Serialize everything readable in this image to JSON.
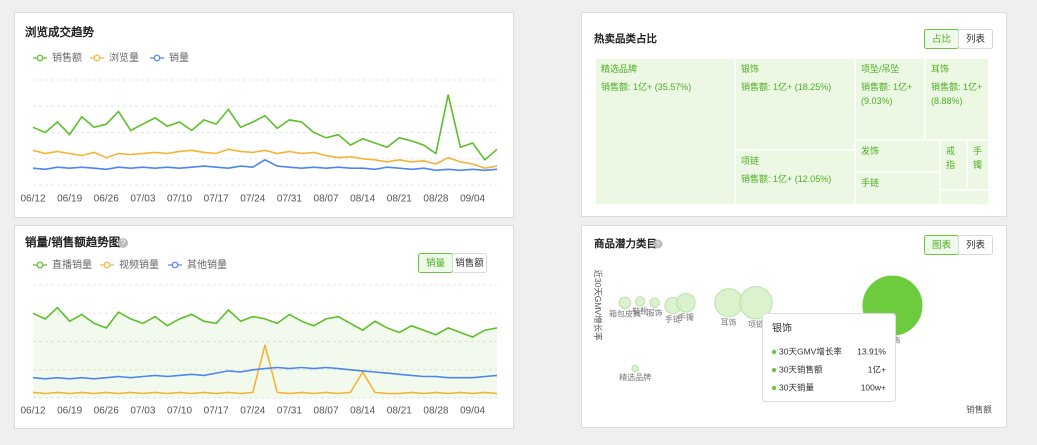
{
  "chart_data": [
    {
      "type": "line",
      "title": "浏览成交趋势",
      "categories": [
        "06/12",
        null,
        null,
        "06/19",
        null,
        null,
        "06/26",
        null,
        null,
        "07/03",
        null,
        null,
        "07/10",
        null,
        null,
        "07/17",
        null,
        null,
        "07/24",
        null,
        null,
        "07/31",
        null,
        null,
        "08/07",
        null,
        null,
        "08/14",
        null,
        null,
        "08/21",
        null,
        null,
        "08/28",
        null,
        null,
        "09/04",
        null,
        null
      ],
      "ylim": [
        0,
        100
      ],
      "series": [
        {
          "name": "销售额",
          "color": "#5cbf2a",
          "values": [
            55,
            50,
            60,
            48,
            65,
            55,
            58,
            70,
            52,
            58,
            64,
            56,
            60,
            52,
            62,
            58,
            72,
            55,
            60,
            66,
            54,
            62,
            60,
            50,
            45,
            48,
            38,
            44,
            40,
            36,
            45,
            42,
            38,
            30,
            86,
            36,
            40,
            24,
            34
          ]
        },
        {
          "name": "浏览量",
          "color": "#f5b335",
          "values": [
            33,
            30,
            32,
            30,
            28,
            31,
            26,
            30,
            29,
            30,
            31,
            30,
            32,
            33,
            31,
            30,
            34,
            32,
            31,
            33,
            30,
            32,
            30,
            31,
            28,
            26,
            27,
            25,
            24,
            22,
            24,
            22,
            23,
            20,
            26,
            22,
            20,
            16,
            18
          ]
        },
        {
          "name": "销量",
          "color": "#4e86f0",
          "values": [
            16,
            15,
            17,
            16,
            17,
            16,
            15,
            17,
            16,
            17,
            16,
            17,
            16,
            17,
            18,
            17,
            16,
            18,
            17,
            24,
            18,
            17,
            16,
            17,
            16,
            17,
            16,
            16,
            15,
            17,
            16,
            15,
            16,
            14,
            15,
            14,
            15,
            14,
            15
          ]
        }
      ]
    },
    {
      "type": "line",
      "title": "销量/销售额趋势图",
      "toggles": [
        "销量",
        "销售额"
      ],
      "active_toggle": 0,
      "area": true,
      "categories": [
        "06/12",
        null,
        null,
        "06/19",
        null,
        null,
        "06/26",
        null,
        null,
        "07/03",
        null,
        null,
        "07/10",
        null,
        null,
        "07/17",
        null,
        null,
        "07/24",
        null,
        null,
        "07/31",
        null,
        null,
        "08/07",
        null,
        null,
        "08/14",
        null,
        null,
        "08/21",
        null,
        null,
        "08/28",
        null,
        null,
        "09/04",
        null,
        null
      ],
      "ylim": [
        0,
        100
      ],
      "series": [
        {
          "name": "直播销量",
          "color": "#5cbf2a",
          "values": [
            75,
            70,
            80,
            68,
            74,
            66,
            62,
            76,
            70,
            66,
            72,
            64,
            70,
            74,
            68,
            66,
            78,
            68,
            72,
            70,
            66,
            74,
            68,
            64,
            70,
            72,
            66,
            60,
            68,
            62,
            58,
            64,
            60,
            56,
            62,
            58,
            54,
            60,
            62
          ]
        },
        {
          "name": "视频销量",
          "color": "#f5b335",
          "values": [
            5,
            4,
            5,
            4,
            5,
            4,
            5,
            4,
            5,
            4,
            5,
            4,
            5,
            4,
            5,
            4,
            5,
            4,
            5,
            47,
            5,
            4,
            5,
            4,
            5,
            4,
            5,
            23,
            5,
            4,
            4,
            5,
            4,
            5,
            4,
            5,
            4,
            5,
            4
          ]
        },
        {
          "name": "其他销量",
          "color": "#4e86f0",
          "values": [
            18,
            17,
            18,
            17,
            18,
            17,
            18,
            19,
            18,
            19,
            20,
            19,
            20,
            21,
            20,
            22,
            24,
            23,
            25,
            26,
            27,
            26,
            27,
            26,
            27,
            26,
            25,
            24,
            23,
            22,
            21,
            20,
            19,
            19,
            18,
            18,
            18,
            19,
            20
          ]
        }
      ]
    },
    {
      "type": "treemap",
      "title": "热卖品类占比",
      "toggles": [
        "占比",
        "列表"
      ],
      "active_toggle": 0,
      "color": "#ecf8e4",
      "categories": [
        "精选品牌",
        "银饰",
        "项坠/吊坠",
        "耳饰",
        "项链",
        "发饰",
        "手链",
        "戒指",
        "手镯"
      ],
      "values": [
        35.57,
        18.25,
        9.03,
        8.88,
        12.05,
        4,
        3.5,
        1.5,
        1.5
      ],
      "value_labels": [
        "销售额: 1亿+ (35.57%)",
        "销售额: 1亿+ (18.25%)",
        "销售额: 1亿+ (9.03%)",
        "销售额: 1亿+ (8.88%)",
        "销售额: 1亿+ (12.05%)",
        null,
        null,
        null,
        null
      ]
    },
    {
      "type": "scatter",
      "title": "商品潜力类目",
      "toggles": [
        "图表",
        "列表"
      ],
      "active_toggle": 0,
      "x_label": "销售额",
      "y_label": "近30天GMV增长率",
      "categories": [
        "箱包皮具",
        "鞋靴",
        "服饰",
        "手链",
        "手镯",
        "耳饰",
        "项链",
        "银饰",
        "精选品牌"
      ],
      "x": [
        6.4,
        10.3,
        14,
        18.7,
        22,
        33,
        40,
        75,
        9
      ],
      "values": [
        73,
        74,
        73,
        71,
        73,
        73,
        73,
        71,
        26
      ],
      "sizes": [
        3,
        2,
        2,
        6,
        8,
        18,
        24,
        80,
        1
      ],
      "xlim": [
        0,
        100
      ],
      "ylim": [
        0,
        100
      ],
      "color": "#d3f0c4",
      "highlight": 7,
      "highlight_color": "#6dcb3e",
      "tooltip": {
        "title": "银饰",
        "items": [
          {
            "label": "30天GMV增长率",
            "value": "13.91%"
          },
          {
            "label": "30天销售额",
            "value": "1亿+"
          },
          {
            "label": "30天销量",
            "value": "100w+"
          }
        ]
      }
    }
  ]
}
